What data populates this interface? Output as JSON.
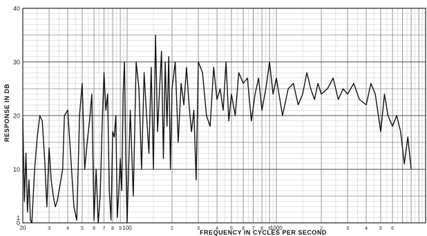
{
  "chart_data": {
    "type": "line",
    "title": "",
    "xlabel": "FREQUENCY IN CYCLES PER SECOND",
    "ylabel": "RESPONSE IN DB",
    "x_scale": "log",
    "xlim": [
      20,
      10000
    ],
    "ylim": [
      0,
      40
    ],
    "grid": true,
    "y_tick_labels": [
      {
        "value": 0,
        "label": "0"
      },
      {
        "value": 1,
        "label": "1"
      },
      {
        "value": 10,
        "label": "10"
      },
      {
        "value": 20,
        "label": "20"
      },
      {
        "value": 30,
        "label": "30"
      },
      {
        "value": 40,
        "label": "40"
      }
    ],
    "x_tick_labels": [
      {
        "value": 20,
        "label": "20"
      },
      {
        "value": 30,
        "label": "3"
      },
      {
        "value": 40,
        "label": "4"
      },
      {
        "value": 50,
        "label": "5"
      },
      {
        "value": 60,
        "label": "6"
      },
      {
        "value": 70,
        "label": "7"
      },
      {
        "value": 80,
        "label": "8"
      },
      {
        "value": 90,
        "label": "9"
      },
      {
        "value": 100,
        "label": "100"
      },
      {
        "value": 200,
        "label": "2"
      },
      {
        "value": 300,
        "label": "3"
      },
      {
        "value": 400,
        "label": "4"
      },
      {
        "value": 500,
        "label": "5"
      },
      {
        "value": 600,
        "label": "6"
      },
      {
        "value": 700,
        "label": "7"
      },
      {
        "value": 800,
        "label": "8"
      },
      {
        "value": 900,
        "label": "9"
      },
      {
        "value": 1000,
        "label": "1000"
      },
      {
        "value": 2000,
        "label": "2"
      },
      {
        "value": 3000,
        "label": "3"
      },
      {
        "value": 4000,
        "label": "4"
      },
      {
        "value": 5000,
        "label": "5"
      },
      {
        "value": 6000,
        "label": "6"
      }
    ],
    "series": [
      {
        "x": [
          20,
          20.5,
          21,
          21.5,
          22,
          22.5,
          23,
          24,
          25,
          26,
          27,
          28,
          29,
          30,
          31,
          32,
          33,
          34,
          35,
          36,
          37,
          38,
          40,
          42,
          44,
          46,
          48,
          50,
          52,
          54,
          56,
          58,
          60,
          62,
          64,
          66,
          68,
          70,
          72,
          74,
          76,
          78,
          80,
          82,
          84,
          86,
          88,
          90,
          92,
          94,
          96,
          98,
          100,
          105,
          110,
          115,
          120,
          125,
          130,
          135,
          140,
          145,
          150,
          155,
          160,
          165,
          170,
          175,
          180,
          185,
          190,
          195,
          200,
          210,
          220,
          230,
          240,
          250,
          260,
          270,
          280,
          290,
          300,
          320,
          340,
          360,
          380,
          400,
          420,
          440,
          460,
          480,
          500,
          530,
          560,
          600,
          640,
          680,
          720,
          760,
          800,
          850,
          900,
          950,
          1000,
          1100,
          1200,
          1300,
          1400,
          1500,
          1600,
          1700,
          1800,
          1900,
          2000,
          2200,
          2400,
          2600,
          2800,
          3000,
          3300,
          3600,
          4000,
          4300,
          4600,
          5000,
          5300,
          5600,
          6000,
          6400,
          6800,
          7200,
          7600,
          8000
        ],
        "y": [
          19.5,
          4,
          13,
          2,
          8,
          0.5,
          0,
          10,
          16,
          20,
          19,
          12,
          3,
          14,
          8,
          5,
          3,
          4,
          6,
          8,
          10,
          20,
          21,
          12,
          3,
          0.5,
          20,
          26,
          10,
          15,
          19,
          24,
          0.5,
          10,
          0,
          5,
          18,
          28,
          21,
          24,
          6,
          0.5,
          17,
          16,
          20,
          1,
          6,
          12,
          6,
          24,
          30,
          12,
          0,
          21,
          5,
          30,
          25,
          10,
          28,
          20,
          13,
          29,
          10,
          35,
          17,
          25,
          32,
          12,
          30,
          18,
          31,
          10,
          25,
          30,
          15,
          26,
          22,
          29,
          22,
          17,
          21,
          8,
          30,
          28,
          20,
          18,
          29,
          23,
          25,
          21,
          30,
          19,
          24,
          20,
          28,
          26,
          27,
          19,
          24,
          27,
          21,
          25,
          30,
          24,
          27,
          20,
          25,
          26,
          22,
          24,
          28,
          25,
          23,
          26,
          24,
          25,
          27,
          23,
          25,
          24,
          26,
          23,
          22,
          26,
          24,
          17,
          24,
          20,
          18,
          20,
          17,
          11,
          16,
          10
        ]
      }
    ]
  }
}
